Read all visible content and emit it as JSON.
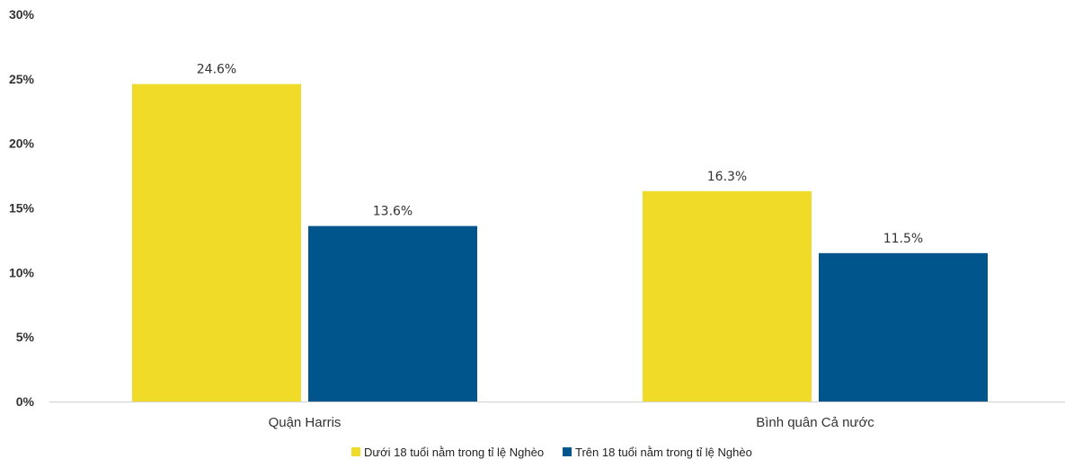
{
  "chart_data": {
    "type": "bar",
    "title": "",
    "xlabel": "",
    "ylabel": "",
    "categories": [
      "Quận Harris",
      "Bình quân Cả nước"
    ],
    "series": [
      {
        "name": "Dưới 18 tuổi nằm trong tỉ lệ Nghèo",
        "values": [
          24.6,
          16.3
        ],
        "labels": [
          "24.6%",
          "16.3%"
        ],
        "color": "#f0dc28"
      },
      {
        "name": "Trên 18 tuổi nằm trong tỉ lệ Nghèo",
        "values": [
          13.6,
          11.5
        ],
        "labels": [
          "13.6%",
          "11.5%"
        ],
        "color": "#00558c"
      }
    ],
    "ylim": [
      0,
      30
    ],
    "yticks": [
      0,
      5,
      10,
      15,
      20,
      25,
      30
    ],
    "ytick_labels": [
      "0%",
      "5%",
      "10%",
      "15%",
      "20%",
      "25%",
      "30%"
    ],
    "grid": false,
    "legend_position": "bottom"
  }
}
